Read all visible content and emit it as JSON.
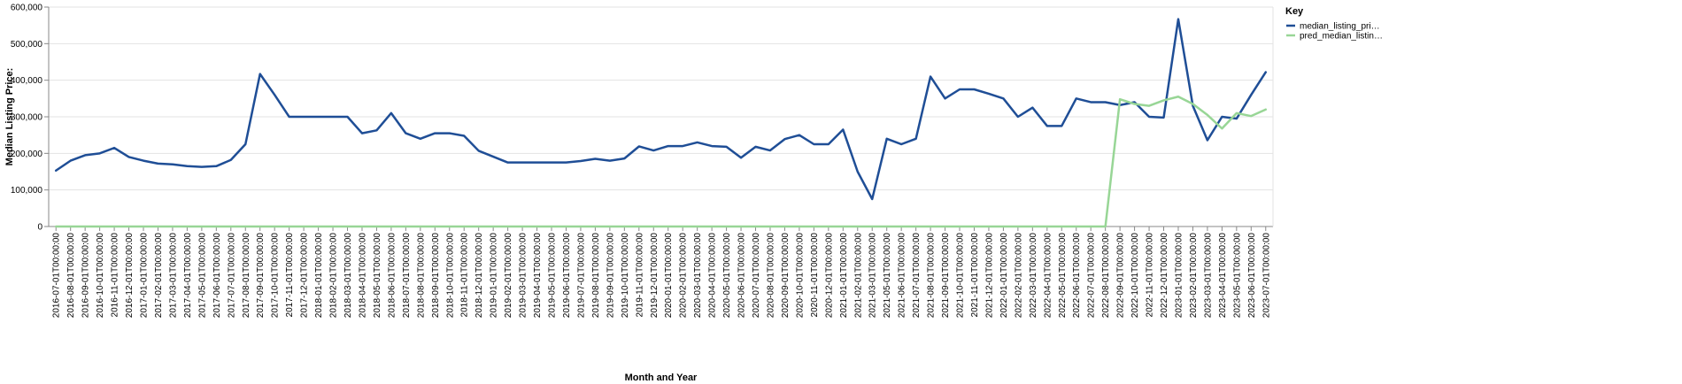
{
  "chart_data": {
    "type": "line",
    "xlabel": "Month and Year",
    "ylabel": "Median Listing Price:",
    "ylim": [
      0,
      600000
    ],
    "yticks": [
      "0",
      "100,000",
      "200,000",
      "300,000",
      "400,000",
      "500,000",
      "600,000"
    ],
    "ytick_values": [
      0,
      100000,
      200000,
      300000,
      400000,
      500000,
      600000
    ],
    "grid": true,
    "legend": {
      "title": "Key",
      "placement": "top-right",
      "entries": [
        "median_listing_pri…",
        "pred_median_listin…"
      ]
    },
    "categories": [
      "2016-07-01T00:00:00",
      "2016-08-01T00:00:00",
      "2016-09-01T00:00:00",
      "2016-10-01T00:00:00",
      "2016-11-01T00:00:00",
      "2016-12-01T00:00:00",
      "2017-01-01T00:00:00",
      "2017-02-01T00:00:00",
      "2017-03-01T00:00:00",
      "2017-04-01T00:00:00",
      "2017-05-01T00:00:00",
      "2017-06-01T00:00:00",
      "2017-07-01T00:00:00",
      "2017-08-01T00:00:00",
      "2017-09-01T00:00:00",
      "2017-10-01T00:00:00",
      "2017-11-01T00:00:00",
      "2017-12-01T00:00:00",
      "2018-01-01T00:00:00",
      "2018-02-01T00:00:00",
      "2018-03-01T00:00:00",
      "2018-04-01T00:00:00",
      "2018-05-01T00:00:00",
      "2018-06-01T00:00:00",
      "2018-07-01T00:00:00",
      "2018-08-01T00:00:00",
      "2018-09-01T00:00:00",
      "2018-10-01T00:00:00",
      "2018-11-01T00:00:00",
      "2018-12-01T00:00:00",
      "2019-01-01T00:00:00",
      "2019-02-01T00:00:00",
      "2019-03-01T00:00:00",
      "2019-04-01T00:00:00",
      "2019-05-01T00:00:00",
      "2019-06-01T00:00:00",
      "2019-07-01T00:00:00",
      "2019-08-01T00:00:00",
      "2019-09-01T00:00:00",
      "2019-10-01T00:00:00",
      "2019-11-01T00:00:00",
      "2019-12-01T00:00:00",
      "2020-01-01T00:00:00",
      "2020-02-01T00:00:00",
      "2020-03-01T00:00:00",
      "2020-04-01T00:00:00",
      "2020-05-01T00:00:00",
      "2020-06-01T00:00:00",
      "2020-07-01T00:00:00",
      "2020-08-01T00:00:00",
      "2020-09-01T00:00:00",
      "2020-10-01T00:00:00",
      "2020-11-01T00:00:00",
      "2020-12-01T00:00:00",
      "2021-01-01T00:00:00",
      "2021-02-01T00:00:00",
      "2021-03-01T00:00:00",
      "2021-05-01T00:00:00",
      "2021-06-01T00:00:00",
      "2021-07-01T00:00:00",
      "2021-08-01T00:00:00",
      "2021-09-01T00:00:00",
      "2021-10-01T00:00:00",
      "2021-11-01T00:00:00",
      "2021-12-01T00:00:00",
      "2022-01-01T00:00:00",
      "2022-02-01T00:00:00",
      "2022-03-01T00:00:00",
      "2022-04-01T00:00:00",
      "2022-05-01T00:00:00",
      "2022-06-01T00:00:00",
      "2022-07-01T00:00:00",
      "2022-08-01T00:00:00",
      "2022-09-01T00:00:00",
      "2022-10-01T00:00:00",
      "2022-11-01T00:00:00",
      "2022-12-01T00:00:00",
      "2023-01-01T00:00:00",
      "2023-02-01T00:00:00",
      "2023-03-01T00:00:00",
      "2023-04-01T00:00:00",
      "2023-05-01T00:00:00",
      "2023-06-01T00:00:00",
      "2023-07-01T00:00:00"
    ],
    "series": [
      {
        "name": "median_listing_pri…",
        "color": "#1f4e96",
        "values": [
          153000,
          180000,
          195000,
          200000,
          215000,
          190000,
          180000,
          172000,
          170000,
          165000,
          163000,
          165000,
          182000,
          225000,
          417000,
          360000,
          300000,
          300000,
          300000,
          300000,
          300000,
          255000,
          263000,
          310000,
          255000,
          240000,
          255000,
          255000,
          248000,
          207000,
          191000,
          175000,
          175000,
          175000,
          175000,
          175000,
          179000,
          185000,
          180000,
          186000,
          219000,
          208000,
          220000,
          220000,
          230000,
          220000,
          218000,
          188000,
          218000,
          208000,
          239000,
          250000,
          225000,
          225000,
          265000,
          150000,
          75000,
          240000,
          225000,
          240000,
          410000,
          350000,
          375000,
          375000,
          363000,
          350000,
          300000,
          325000,
          275000,
          275000,
          350000,
          340000,
          340000,
          332000,
          340000,
          300000,
          298000,
          567000,
          330000,
          236000,
          300000,
          295000,
          360000,
          422000
        ]
      },
      {
        "name": "pred_median_listin…",
        "color": "#98d696",
        "values": [
          0,
          0,
          0,
          0,
          0,
          0,
          0,
          0,
          0,
          0,
          0,
          0,
          0,
          0,
          0,
          0,
          0,
          0,
          0,
          0,
          0,
          0,
          0,
          0,
          0,
          0,
          0,
          0,
          0,
          0,
          0,
          0,
          0,
          0,
          0,
          0,
          0,
          0,
          0,
          0,
          0,
          0,
          0,
          0,
          0,
          0,
          0,
          0,
          0,
          0,
          0,
          0,
          0,
          0,
          0,
          0,
          0,
          0,
          0,
          0,
          0,
          0,
          0,
          0,
          0,
          0,
          0,
          0,
          0,
          0,
          0,
          0,
          0,
          348000,
          335000,
          330000,
          345000,
          355000,
          335000,
          305000,
          268000,
          310000,
          302000,
          320000
        ]
      }
    ]
  }
}
